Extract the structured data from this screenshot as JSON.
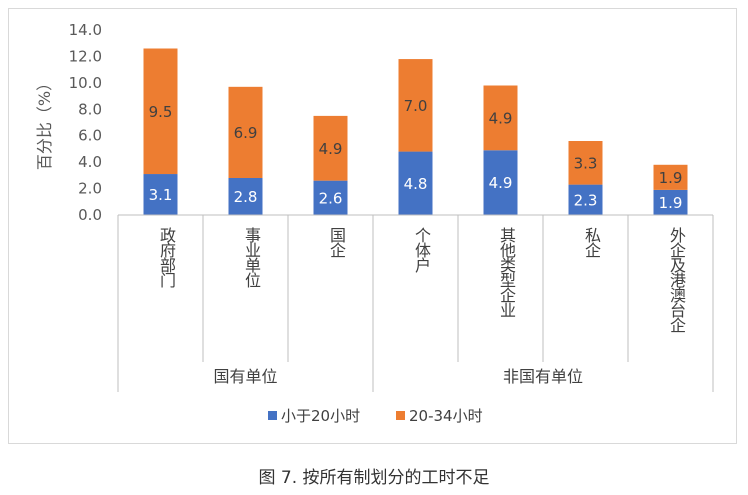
{
  "caption": "图 7. 按所有制划分的工时不足",
  "chart_data": {
    "type": "bar",
    "stacked": true,
    "ylabel": "百分比（%）",
    "ylim": [
      0,
      14
    ],
    "yticks": [
      "0.0",
      "2.0",
      "4.0",
      "6.0",
      "8.0",
      "10.0",
      "12.0",
      "14.0"
    ],
    "categories": [
      "政府部门",
      "事业单位",
      "国企",
      "个体户",
      "其他类型企业",
      "私企",
      "外企及港澳台企"
    ],
    "groups": [
      {
        "label": "国有单位",
        "start": 0,
        "end": 2
      },
      {
        "label": "非国有单位",
        "start": 3,
        "end": 6
      }
    ],
    "series": [
      {
        "name": "小于20小时",
        "color": "#4472c4",
        "values": [
          3.1,
          2.8,
          2.6,
          4.8,
          4.9,
          2.3,
          1.9
        ],
        "labels": [
          "3.1",
          "2.8",
          "2.6",
          "4.8",
          "4.9",
          "2.3",
          "1.9"
        ],
        "label_color": "#ffffff"
      },
      {
        "name": "20-34小时",
        "color": "#ed7d31",
        "values": [
          9.5,
          6.9,
          4.9,
          7.0,
          4.9,
          3.3,
          1.9
        ],
        "labels": [
          "9.5",
          "6.9",
          "4.9",
          "7.0",
          "4.9",
          "3.3",
          "1.9"
        ],
        "label_color": "#404040"
      }
    ],
    "grid": false,
    "legend": "bottom"
  }
}
